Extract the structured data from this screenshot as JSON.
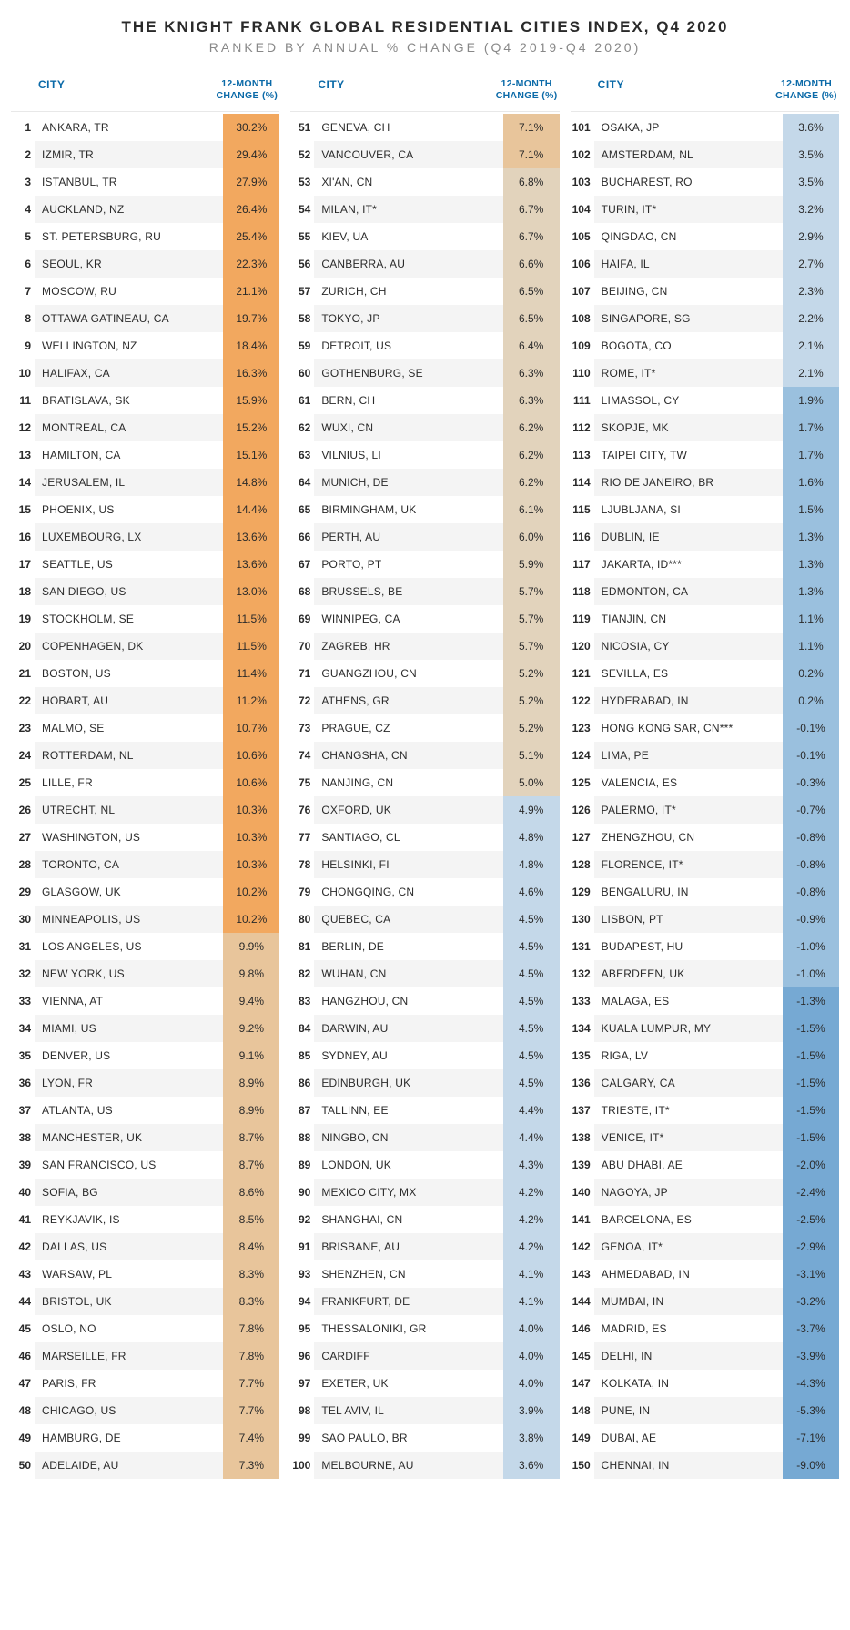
{
  "title": "THE KNIGHT FRANK GLOBAL RESIDENTIAL CITIES INDEX, Q4 2020",
  "subtitle": "RANKED BY ANNUAL % CHANGE (Q4 2019-Q4 2020)",
  "headers": {
    "city": "CITY",
    "change": "12-MONTH CHANGE (%)"
  },
  "colors": {
    "header_text": "#0b6aa8",
    "row_alt_bg": "#f4f4f4",
    "tiers": {
      "1": "#f2a85f",
      "2": "#e8c59b",
      "3": "#e2d3bc",
      "4": "#c4d8e9",
      "5": "#9ac0de",
      "6": "#76a9d3"
    }
  },
  "tier_rules": "tier 1: pct>=10.0; tier 2: 7.0<=pct<10.0; tier 3: 5.0<=pct<7.0; tier 4: 2.0<=pct<5.0; tier 5: -1.0<=pct<2.0; tier 6: pct<-1.0",
  "rows": [
    {
      "rank": "1",
      "city": "ANKARA, TR",
      "pct": "30.2%",
      "tier": 1
    },
    {
      "rank": "2",
      "city": "IZMIR, TR",
      "pct": "29.4%",
      "tier": 1
    },
    {
      "rank": "3",
      "city": "ISTANBUL, TR",
      "pct": "27.9%",
      "tier": 1
    },
    {
      "rank": "4",
      "city": "AUCKLAND, NZ",
      "pct": "26.4%",
      "tier": 1
    },
    {
      "rank": "5",
      "city": "ST. PETERSBURG, RU",
      "pct": "25.4%",
      "tier": 1
    },
    {
      "rank": "6",
      "city": "SEOUL, KR",
      "pct": "22.3%",
      "tier": 1
    },
    {
      "rank": "7",
      "city": "MOSCOW, RU",
      "pct": "21.1%",
      "tier": 1
    },
    {
      "rank": "8",
      "city": "OTTAWA GATINEAU, CA",
      "pct": "19.7%",
      "tier": 1
    },
    {
      "rank": "9",
      "city": "WELLINGTON, NZ",
      "pct": "18.4%",
      "tier": 1
    },
    {
      "rank": "10",
      "city": "HALIFAX, CA",
      "pct": "16.3%",
      "tier": 1
    },
    {
      "rank": "11",
      "city": "BRATISLAVA, SK",
      "pct": "15.9%",
      "tier": 1
    },
    {
      "rank": "12",
      "city": "MONTREAL, CA",
      "pct": "15.2%",
      "tier": 1
    },
    {
      "rank": "13",
      "city": "HAMILTON, CA",
      "pct": "15.1%",
      "tier": 1
    },
    {
      "rank": "14",
      "city": "JERUSALEM, IL",
      "pct": "14.8%",
      "tier": 1
    },
    {
      "rank": "15",
      "city": "PHOENIX, US",
      "pct": "14.4%",
      "tier": 1
    },
    {
      "rank": "16",
      "city": "LUXEMBOURG, LX",
      "pct": "13.6%",
      "tier": 1
    },
    {
      "rank": "17",
      "city": "SEATTLE, US",
      "pct": "13.6%",
      "tier": 1
    },
    {
      "rank": "18",
      "city": "SAN DIEGO, US",
      "pct": "13.0%",
      "tier": 1
    },
    {
      "rank": "19",
      "city": "STOCKHOLM, SE",
      "pct": "11.5%",
      "tier": 1
    },
    {
      "rank": "20",
      "city": "COPENHAGEN, DK",
      "pct": "11.5%",
      "tier": 1
    },
    {
      "rank": "21",
      "city": "BOSTON, US",
      "pct": "11.4%",
      "tier": 1
    },
    {
      "rank": "22",
      "city": "HOBART, AU",
      "pct": "11.2%",
      "tier": 1
    },
    {
      "rank": "23",
      "city": "MALMO, SE",
      "pct": "10.7%",
      "tier": 1
    },
    {
      "rank": "24",
      "city": "ROTTERDAM, NL",
      "pct": "10.6%",
      "tier": 1
    },
    {
      "rank": "25",
      "city": "LILLE, FR",
      "pct": "10.6%",
      "tier": 1
    },
    {
      "rank": "26",
      "city": "UTRECHT, NL",
      "pct": "10.3%",
      "tier": 1
    },
    {
      "rank": "27",
      "city": "WASHINGTON, US",
      "pct": "10.3%",
      "tier": 1
    },
    {
      "rank": "28",
      "city": "TORONTO, CA",
      "pct": "10.3%",
      "tier": 1
    },
    {
      "rank": "29",
      "city": "GLASGOW, UK",
      "pct": "10.2%",
      "tier": 1
    },
    {
      "rank": "30",
      "city": "MINNEAPOLIS, US",
      "pct": "10.2%",
      "tier": 1
    },
    {
      "rank": "31",
      "city": "LOS ANGELES, US",
      "pct": "9.9%",
      "tier": 2
    },
    {
      "rank": "32",
      "city": "NEW YORK, US",
      "pct": "9.8%",
      "tier": 2
    },
    {
      "rank": "33",
      "city": "VIENNA, AT",
      "pct": "9.4%",
      "tier": 2
    },
    {
      "rank": "34",
      "city": "MIAMI, US",
      "pct": "9.2%",
      "tier": 2
    },
    {
      "rank": "35",
      "city": "DENVER, US",
      "pct": "9.1%",
      "tier": 2
    },
    {
      "rank": "36",
      "city": "LYON, FR",
      "pct": "8.9%",
      "tier": 2
    },
    {
      "rank": "37",
      "city": "ATLANTA, US",
      "pct": "8.9%",
      "tier": 2
    },
    {
      "rank": "38",
      "city": "MANCHESTER, UK",
      "pct": "8.7%",
      "tier": 2
    },
    {
      "rank": "39",
      "city": "SAN FRANCISCO, US",
      "pct": "8.7%",
      "tier": 2
    },
    {
      "rank": "40",
      "city": "SOFIA, BG",
      "pct": "8.6%",
      "tier": 2
    },
    {
      "rank": "41",
      "city": "REYKJAVIK, IS",
      "pct": "8.5%",
      "tier": 2
    },
    {
      "rank": "42",
      "city": "DALLAS, US",
      "pct": "8.4%",
      "tier": 2
    },
    {
      "rank": "43",
      "city": "WARSAW, PL",
      "pct": "8.3%",
      "tier": 2
    },
    {
      "rank": "44",
      "city": "BRISTOL, UK",
      "pct": "8.3%",
      "tier": 2
    },
    {
      "rank": "45",
      "city": "OSLO, NO",
      "pct": "7.8%",
      "tier": 2
    },
    {
      "rank": "46",
      "city": "MARSEILLE, FR",
      "pct": "7.8%",
      "tier": 2
    },
    {
      "rank": "47",
      "city": "PARIS, FR",
      "pct": "7.7%",
      "tier": 2
    },
    {
      "rank": "48",
      "city": "CHICAGO, US",
      "pct": "7.7%",
      "tier": 2
    },
    {
      "rank": "49",
      "city": "HAMBURG, DE",
      "pct": "7.4%",
      "tier": 2
    },
    {
      "rank": "50",
      "city": "ADELAIDE, AU",
      "pct": "7.3%",
      "tier": 2
    },
    {
      "rank": "51",
      "city": "GENEVA, CH",
      "pct": "7.1%",
      "tier": 2
    },
    {
      "rank": "52",
      "city": "VANCOUVER, CA",
      "pct": "7.1%",
      "tier": 2
    },
    {
      "rank": "53",
      "city": "XI'AN, CN",
      "pct": "6.8%",
      "tier": 3
    },
    {
      "rank": "54",
      "city": "MILAN, IT*",
      "pct": "6.7%",
      "tier": 3
    },
    {
      "rank": "55",
      "city": "KIEV, UA",
      "pct": "6.7%",
      "tier": 3
    },
    {
      "rank": "56",
      "city": "CANBERRA, AU",
      "pct": "6.6%",
      "tier": 3
    },
    {
      "rank": "57",
      "city": "ZURICH, CH",
      "pct": "6.5%",
      "tier": 3
    },
    {
      "rank": "58",
      "city": "TOKYO, JP",
      "pct": "6.5%",
      "tier": 3
    },
    {
      "rank": "59",
      "city": "DETROIT, US",
      "pct": "6.4%",
      "tier": 3
    },
    {
      "rank": "60",
      "city": "GOTHENBURG, SE",
      "pct": "6.3%",
      "tier": 3
    },
    {
      "rank": "61",
      "city": "BERN, CH",
      "pct": "6.3%",
      "tier": 3
    },
    {
      "rank": "62",
      "city": "WUXI, CN",
      "pct": "6.2%",
      "tier": 3
    },
    {
      "rank": "63",
      "city": "VILNIUS, LI",
      "pct": "6.2%",
      "tier": 3
    },
    {
      "rank": "64",
      "city": "MUNICH, DE",
      "pct": "6.2%",
      "tier": 3
    },
    {
      "rank": "65",
      "city": "BIRMINGHAM, UK",
      "pct": "6.1%",
      "tier": 3
    },
    {
      "rank": "66",
      "city": "PERTH, AU",
      "pct": "6.0%",
      "tier": 3
    },
    {
      "rank": "67",
      "city": "PORTO, PT",
      "pct": "5.9%",
      "tier": 3
    },
    {
      "rank": "68",
      "city": "BRUSSELS, BE",
      "pct": "5.7%",
      "tier": 3
    },
    {
      "rank": "69",
      "city": "WINNIPEG, CA",
      "pct": "5.7%",
      "tier": 3
    },
    {
      "rank": "70",
      "city": "ZAGREB, HR",
      "pct": "5.7%",
      "tier": 3
    },
    {
      "rank": "71",
      "city": "GUANGZHOU, CN",
      "pct": "5.2%",
      "tier": 3
    },
    {
      "rank": "72",
      "city": "ATHENS, GR",
      "pct": "5.2%",
      "tier": 3
    },
    {
      "rank": "73",
      "city": "PRAGUE, CZ",
      "pct": "5.2%",
      "tier": 3
    },
    {
      "rank": "74",
      "city": "CHANGSHA, CN",
      "pct": "5.1%",
      "tier": 3
    },
    {
      "rank": "75",
      "city": "NANJING, CN",
      "pct": "5.0%",
      "tier": 3
    },
    {
      "rank": "76",
      "city": "OXFORD, UK",
      "pct": "4.9%",
      "tier": 4
    },
    {
      "rank": "77",
      "city": "SANTIAGO, CL",
      "pct": "4.8%",
      "tier": 4
    },
    {
      "rank": "78",
      "city": "HELSINKI, FI",
      "pct": "4.8%",
      "tier": 4
    },
    {
      "rank": "79",
      "city": "CHONGQING, CN",
      "pct": "4.6%",
      "tier": 4
    },
    {
      "rank": "80",
      "city": "QUEBEC, CA",
      "pct": "4.5%",
      "tier": 4
    },
    {
      "rank": "81",
      "city": "BERLIN, DE",
      "pct": "4.5%",
      "tier": 4
    },
    {
      "rank": "82",
      "city": "WUHAN, CN",
      "pct": "4.5%",
      "tier": 4
    },
    {
      "rank": "83",
      "city": "HANGZHOU, CN",
      "pct": "4.5%",
      "tier": 4
    },
    {
      "rank": "84",
      "city": "DARWIN, AU",
      "pct": "4.5%",
      "tier": 4
    },
    {
      "rank": "85",
      "city": "SYDNEY, AU",
      "pct": "4.5%",
      "tier": 4
    },
    {
      "rank": "86",
      "city": "EDINBURGH, UK",
      "pct": "4.5%",
      "tier": 4
    },
    {
      "rank": "87",
      "city": "TALLINN, EE",
      "pct": "4.4%",
      "tier": 4
    },
    {
      "rank": "88",
      "city": "NINGBO, CN",
      "pct": "4.4%",
      "tier": 4
    },
    {
      "rank": "89",
      "city": "LONDON, UK",
      "pct": "4.3%",
      "tier": 4
    },
    {
      "rank": "90",
      "city": "MEXICO CITY, MX",
      "pct": "4.2%",
      "tier": 4
    },
    {
      "rank": "92",
      "city": "SHANGHAI, CN",
      "pct": "4.2%",
      "tier": 4
    },
    {
      "rank": "91",
      "city": "BRISBANE, AU",
      "pct": "4.2%",
      "tier": 4
    },
    {
      "rank": "93",
      "city": "SHENZHEN, CN",
      "pct": "4.1%",
      "tier": 4
    },
    {
      "rank": "94",
      "city": "FRANKFURT, DE",
      "pct": "4.1%",
      "tier": 4
    },
    {
      "rank": "95",
      "city": "THESSALONIKI, GR",
      "pct": "4.0%",
      "tier": 4
    },
    {
      "rank": "96",
      "city": "CARDIFF",
      "pct": "4.0%",
      "tier": 4
    },
    {
      "rank": "97",
      "city": "EXETER, UK",
      "pct": "4.0%",
      "tier": 4
    },
    {
      "rank": "98",
      "city": "TEL AVIV, IL",
      "pct": "3.9%",
      "tier": 4
    },
    {
      "rank": "99",
      "city": "SAO PAULO, BR",
      "pct": "3.8%",
      "tier": 4
    },
    {
      "rank": "100",
      "city": "MELBOURNE, AU",
      "pct": "3.6%",
      "tier": 4
    },
    {
      "rank": "101",
      "city": "OSAKA, JP",
      "pct": "3.6%",
      "tier": 4
    },
    {
      "rank": "102",
      "city": "AMSTERDAM, NL",
      "pct": "3.5%",
      "tier": 4
    },
    {
      "rank": "103",
      "city": "BUCHAREST, RO",
      "pct": "3.5%",
      "tier": 4
    },
    {
      "rank": "104",
      "city": "TURIN, IT*",
      "pct": "3.2%",
      "tier": 4
    },
    {
      "rank": "105",
      "city": "QINGDAO, CN",
      "pct": "2.9%",
      "tier": 4
    },
    {
      "rank": "106",
      "city": "HAIFA, IL",
      "pct": "2.7%",
      "tier": 4
    },
    {
      "rank": "107",
      "city": "BEIJING, CN",
      "pct": "2.3%",
      "tier": 4
    },
    {
      "rank": "108",
      "city": "SINGAPORE, SG",
      "pct": "2.2%",
      "tier": 4
    },
    {
      "rank": "109",
      "city": "BOGOTA, CO",
      "pct": "2.1%",
      "tier": 4
    },
    {
      "rank": "110",
      "city": "ROME, IT*",
      "pct": "2.1%",
      "tier": 4
    },
    {
      "rank": "111",
      "city": "LIMASSOL, CY",
      "pct": "1.9%",
      "tier": 5
    },
    {
      "rank": "112",
      "city": "SKOPJE, MK",
      "pct": "1.7%",
      "tier": 5
    },
    {
      "rank": "113",
      "city": "TAIPEI CITY, TW",
      "pct": "1.7%",
      "tier": 5
    },
    {
      "rank": "114",
      "city": "RIO DE JANEIRO, BR",
      "pct": "1.6%",
      "tier": 5
    },
    {
      "rank": "115",
      "city": "LJUBLJANA, SI",
      "pct": "1.5%",
      "tier": 5
    },
    {
      "rank": "116",
      "city": "DUBLIN, IE",
      "pct": "1.3%",
      "tier": 5
    },
    {
      "rank": "117",
      "city": "JAKARTA, ID***",
      "pct": "1.3%",
      "tier": 5
    },
    {
      "rank": "118",
      "city": "EDMONTON, CA",
      "pct": "1.3%",
      "tier": 5
    },
    {
      "rank": "119",
      "city": "TIANJIN, CN",
      "pct": "1.1%",
      "tier": 5
    },
    {
      "rank": "120",
      "city": "NICOSIA, CY",
      "pct": "1.1%",
      "tier": 5
    },
    {
      "rank": "121",
      "city": "SEVILLA, ES",
      "pct": "0.2%",
      "tier": 5
    },
    {
      "rank": "122",
      "city": "HYDERABAD, IN",
      "pct": "0.2%",
      "tier": 5
    },
    {
      "rank": "123",
      "city": "HONG KONG SAR, CN***",
      "pct": "-0.1%",
      "tier": 5
    },
    {
      "rank": "124",
      "city": "LIMA, PE",
      "pct": "-0.1%",
      "tier": 5
    },
    {
      "rank": "125",
      "city": "VALENCIA, ES",
      "pct": "-0.3%",
      "tier": 5
    },
    {
      "rank": "126",
      "city": "PALERMO, IT*",
      "pct": "-0.7%",
      "tier": 5
    },
    {
      "rank": "127",
      "city": "ZHENGZHOU, CN",
      "pct": "-0.8%",
      "tier": 5
    },
    {
      "rank": "128",
      "city": "FLORENCE, IT*",
      "pct": "-0.8%",
      "tier": 5
    },
    {
      "rank": "129",
      "city": "BENGALURU, IN",
      "pct": "-0.8%",
      "tier": 5
    },
    {
      "rank": "130",
      "city": "LISBON, PT",
      "pct": "-0.9%",
      "tier": 5
    },
    {
      "rank": "131",
      "city": "BUDAPEST, HU",
      "pct": "-1.0%",
      "tier": 5
    },
    {
      "rank": "132",
      "city": "ABERDEEN, UK",
      "pct": "-1.0%",
      "tier": 5
    },
    {
      "rank": "133",
      "city": "MALAGA, ES",
      "pct": "-1.3%",
      "tier": 6
    },
    {
      "rank": "134",
      "city": "KUALA LUMPUR, MY",
      "pct": "-1.5%",
      "tier": 6
    },
    {
      "rank": "135",
      "city": "RIGA, LV",
      "pct": "-1.5%",
      "tier": 6
    },
    {
      "rank": "136",
      "city": "CALGARY, CA",
      "pct": "-1.5%",
      "tier": 6
    },
    {
      "rank": "137",
      "city": "TRIESTE, IT*",
      "pct": "-1.5%",
      "tier": 6
    },
    {
      "rank": "138",
      "city": "VENICE, IT*",
      "pct": "-1.5%",
      "tier": 6
    },
    {
      "rank": "139",
      "city": "ABU DHABI, AE",
      "pct": "-2.0%",
      "tier": 6
    },
    {
      "rank": "140",
      "city": "NAGOYA, JP",
      "pct": "-2.4%",
      "tier": 6
    },
    {
      "rank": "141",
      "city": "BARCELONA, ES",
      "pct": "-2.5%",
      "tier": 6
    },
    {
      "rank": "142",
      "city": "GENOA, IT*",
      "pct": "-2.9%",
      "tier": 6
    },
    {
      "rank": "143",
      "city": "AHMEDABAD, IN",
      "pct": "-3.1%",
      "tier": 6
    },
    {
      "rank": "144",
      "city": "MUMBAI, IN",
      "pct": "-3.2%",
      "tier": 6
    },
    {
      "rank": "146",
      "city": "MADRID, ES",
      "pct": "-3.7%",
      "tier": 6
    },
    {
      "rank": "145",
      "city": "DELHI, IN",
      "pct": "-3.9%",
      "tier": 6
    },
    {
      "rank": "147",
      "city": "KOLKATA, IN",
      "pct": "-4.3%",
      "tier": 6
    },
    {
      "rank": "148",
      "city": "PUNE, IN",
      "pct": "-5.3%",
      "tier": 6
    },
    {
      "rank": "149",
      "city": "DUBAI, AE",
      "pct": "-7.1%",
      "tier": 6
    },
    {
      "rank": "150",
      "city": "CHENNAI, IN",
      "pct": "-9.0%",
      "tier": 6
    }
  ]
}
